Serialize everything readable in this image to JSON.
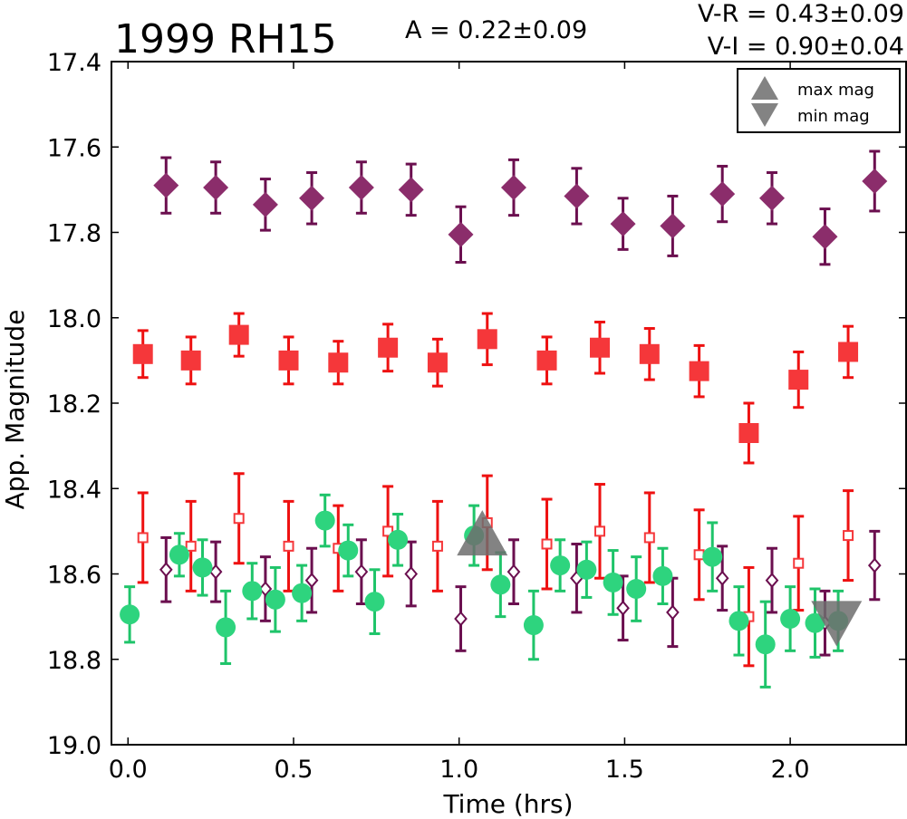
{
  "chart_data": {
    "type": "scatter",
    "title": "1999 RH15",
    "annotations": {
      "amplitude": "A  = 0.22±0.09",
      "vr": "V-R = 0.43±0.09",
      "vi": "V-I  = 0.90±0.04"
    },
    "xlabel": "Time (hrs)",
    "ylabel": "App. Magnitude",
    "xlim": [
      -0.05,
      2.35
    ],
    "ylim": [
      19.0,
      17.4
    ],
    "y_inverted": true,
    "xticks": [
      "0.0",
      "0.5",
      "1.0",
      "1.5",
      "2.0"
    ],
    "xtick_values": [
      0.0,
      0.5,
      1.0,
      1.5,
      2.0
    ],
    "yticks": [
      "17.4",
      "17.6",
      "17.8",
      "18.0",
      "18.2",
      "18.4",
      "18.6",
      "18.8",
      "19.0"
    ],
    "ytick_values": [
      17.4,
      17.6,
      17.8,
      18.0,
      18.2,
      18.4,
      18.6,
      18.8,
      19.0
    ],
    "legend": {
      "position": "top-right",
      "entries": [
        "max mag",
        "min mag"
      ]
    },
    "colors": {
      "purple": "#8b2d6b",
      "purple_dark": "#6b0f4f",
      "red": "#f5373a",
      "red_err": "#ee1111",
      "green": "#2ed47e",
      "green_err": "#1fc46a",
      "marker_gray": "#6d6d6d"
    },
    "series": [
      {
        "marker": "diamond-filled",
        "color": "#8b2d6b",
        "x": [
          0.115,
          0.265,
          0.415,
          0.555,
          0.705,
          0.855,
          1.005,
          1.165,
          1.355,
          1.495,
          1.645,
          1.795,
          1.945,
          2.105,
          2.255
        ],
        "y": [
          17.69,
          17.695,
          17.735,
          17.72,
          17.695,
          17.7,
          17.805,
          17.695,
          17.715,
          17.78,
          17.785,
          17.71,
          17.72,
          17.81,
          17.68
        ],
        "err": [
          0.065,
          0.06,
          0.06,
          0.06,
          0.06,
          0.06,
          0.065,
          0.065,
          0.065,
          0.06,
          0.07,
          0.065,
          0.06,
          0.065,
          0.07
        ]
      },
      {
        "marker": "square-filled",
        "color": "#f5373a",
        "x": [
          0.045,
          0.19,
          0.335,
          0.485,
          0.635,
          0.785,
          0.935,
          1.085,
          1.265,
          1.425,
          1.575,
          1.725,
          1.875,
          2.025,
          2.175
        ],
        "y": [
          18.085,
          18.1,
          18.04,
          18.1,
          18.105,
          18.07,
          18.105,
          18.05,
          18.1,
          18.07,
          18.085,
          18.125,
          18.27,
          18.145,
          18.08
        ],
        "err": [
          0.055,
          0.055,
          0.05,
          0.055,
          0.05,
          0.055,
          0.055,
          0.06,
          0.055,
          0.06,
          0.06,
          0.06,
          0.07,
          0.065,
          0.06
        ]
      },
      {
        "marker": "square-open",
        "color": "#f5373a",
        "x": [
          0.045,
          0.19,
          0.335,
          0.485,
          0.635,
          0.785,
          0.935,
          1.085,
          1.265,
          1.425,
          1.575,
          1.725,
          1.875,
          2.025,
          2.175
        ],
        "y": [
          18.515,
          18.535,
          18.47,
          18.535,
          18.54,
          18.5,
          18.535,
          18.48,
          18.53,
          18.5,
          18.515,
          18.555,
          18.7,
          18.575,
          18.51
        ],
        "err": [
          0.105,
          0.105,
          0.105,
          0.105,
          0.1,
          0.105,
          0.105,
          0.11,
          0.105,
          0.11,
          0.105,
          0.105,
          0.115,
          0.11,
          0.105
        ]
      },
      {
        "marker": "diamond-open",
        "color": "#6b0f4f",
        "x": [
          0.115,
          0.265,
          0.415,
          0.555,
          0.705,
          0.855,
          1.005,
          1.165,
          1.355,
          1.495,
          1.645,
          1.795,
          1.945,
          2.105,
          2.255
        ],
        "y": [
          18.59,
          18.595,
          18.635,
          18.615,
          18.595,
          18.6,
          18.705,
          18.595,
          18.61,
          18.68,
          18.69,
          18.61,
          18.615,
          18.715,
          18.58
        ],
        "err": [
          0.075,
          0.07,
          0.075,
          0.075,
          0.075,
          0.075,
          0.075,
          0.075,
          0.08,
          0.075,
          0.08,
          0.075,
          0.075,
          0.075,
          0.08
        ]
      },
      {
        "marker": "circle-filled",
        "color": "#2ed47e",
        "x": [
          0.005,
          0.155,
          0.225,
          0.295,
          0.375,
          0.445,
          0.525,
          0.595,
          0.665,
          0.745,
          0.815,
          1.045,
          1.125,
          1.225,
          1.305,
          1.385,
          1.465,
          1.535,
          1.615,
          1.765,
          1.845,
          1.925,
          2.0,
          2.075,
          2.145
        ],
        "y": [
          18.695,
          18.555,
          18.585,
          18.725,
          18.64,
          18.66,
          18.645,
          18.475,
          18.545,
          18.665,
          18.52,
          18.51,
          18.625,
          18.72,
          18.58,
          18.59,
          18.62,
          18.635,
          18.605,
          18.56,
          18.71,
          18.765,
          18.705,
          18.715,
          18.71
        ],
        "err": [
          0.065,
          0.05,
          0.065,
          0.085,
          0.065,
          0.075,
          0.065,
          0.06,
          0.06,
          0.075,
          0.06,
          0.07,
          0.075,
          0.08,
          0.06,
          0.065,
          0.075,
          0.075,
          0.065,
          0.08,
          0.08,
          0.1,
          0.075,
          0.08,
          0.07
        ]
      }
    ],
    "markers": {
      "max_mag": {
        "x": 1.07,
        "y": 18.51
      },
      "min_mag": {
        "x": 2.14,
        "y": 18.71
      }
    }
  }
}
